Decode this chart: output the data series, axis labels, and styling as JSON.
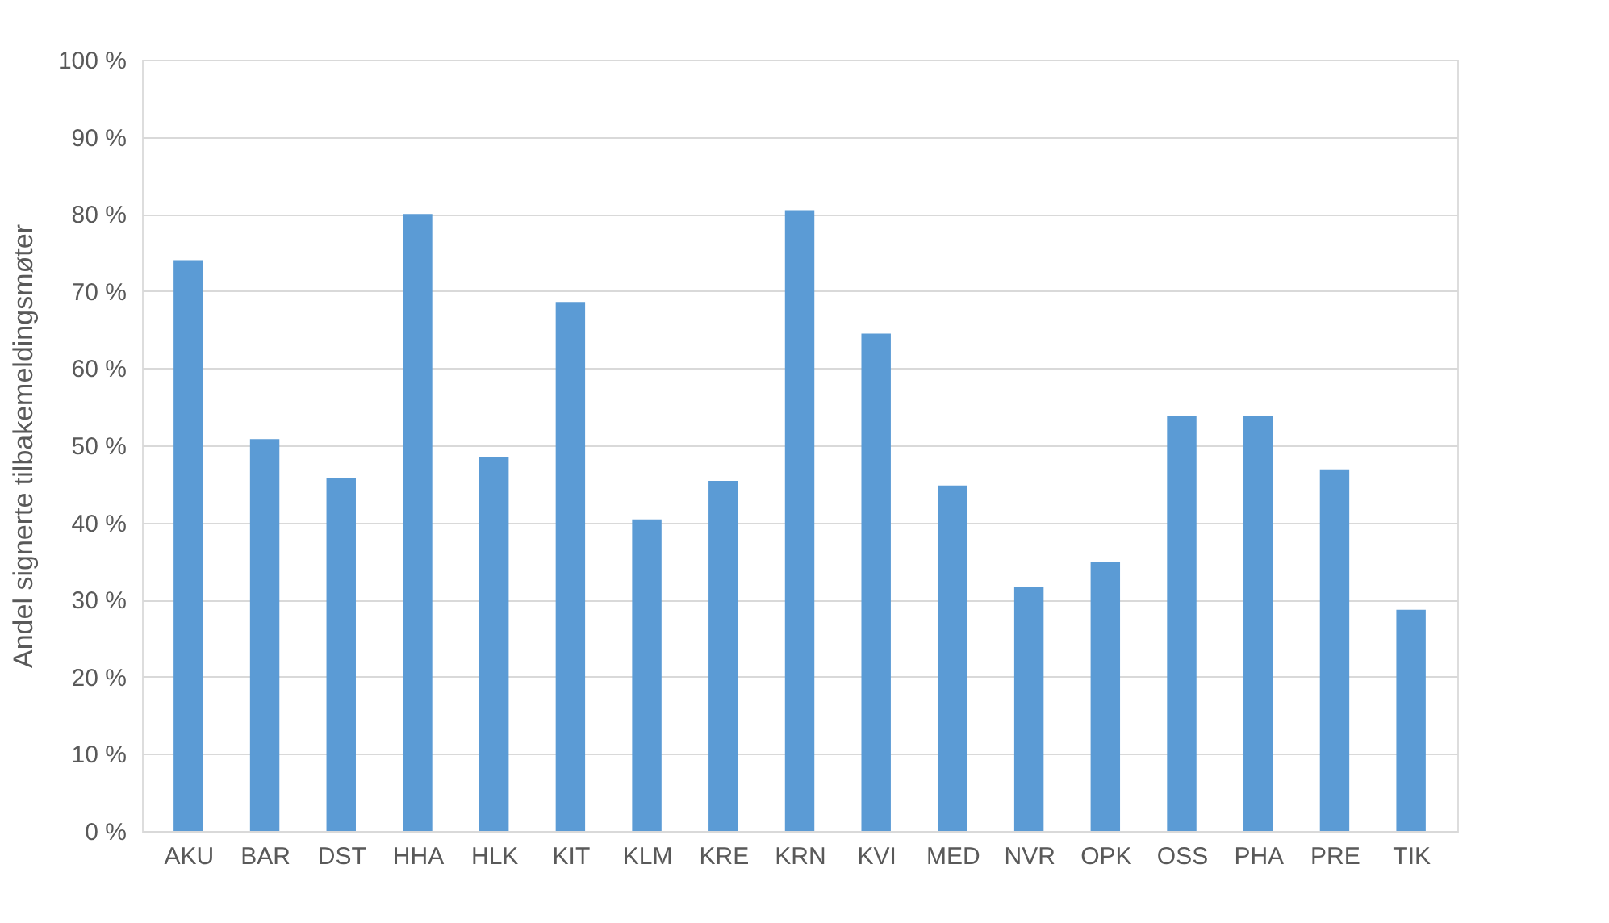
{
  "chart_data": {
    "type": "bar",
    "ylabel": "Andel signerte tilbakemeldingsmøter",
    "categories": [
      "AKU",
      "BAR",
      "DST",
      "HHA",
      "HLK",
      "KIT",
      "KLM",
      "KRE",
      "KRN",
      "KVI",
      "MED",
      "NVR",
      "OPK",
      "OSS",
      "PHA",
      "PRE",
      "TIK"
    ],
    "values": [
      74,
      50.8,
      45.8,
      80,
      48.5,
      68.6,
      40.4,
      45.4,
      80.5,
      64.5,
      44.8,
      31.6,
      34.9,
      53.8,
      53.8,
      46.9,
      28.7
    ],
    "color": "#5b9bd5",
    "ylim": [
      0,
      100
    ],
    "yticks": [
      {
        "value": 0,
        "label": "0 %"
      },
      {
        "value": 10,
        "label": "10 %"
      },
      {
        "value": 20,
        "label": "20 %"
      },
      {
        "value": 30,
        "label": "30 %"
      },
      {
        "value": 40,
        "label": "40 %"
      },
      {
        "value": 50,
        "label": "50 %"
      },
      {
        "value": 60,
        "label": "60 %"
      },
      {
        "value": 70,
        "label": "70 %"
      },
      {
        "value": 80,
        "label": "80 %"
      },
      {
        "value": 90,
        "label": "90 %"
      },
      {
        "value": 100,
        "label": "100 %"
      }
    ],
    "grid": "y"
  }
}
